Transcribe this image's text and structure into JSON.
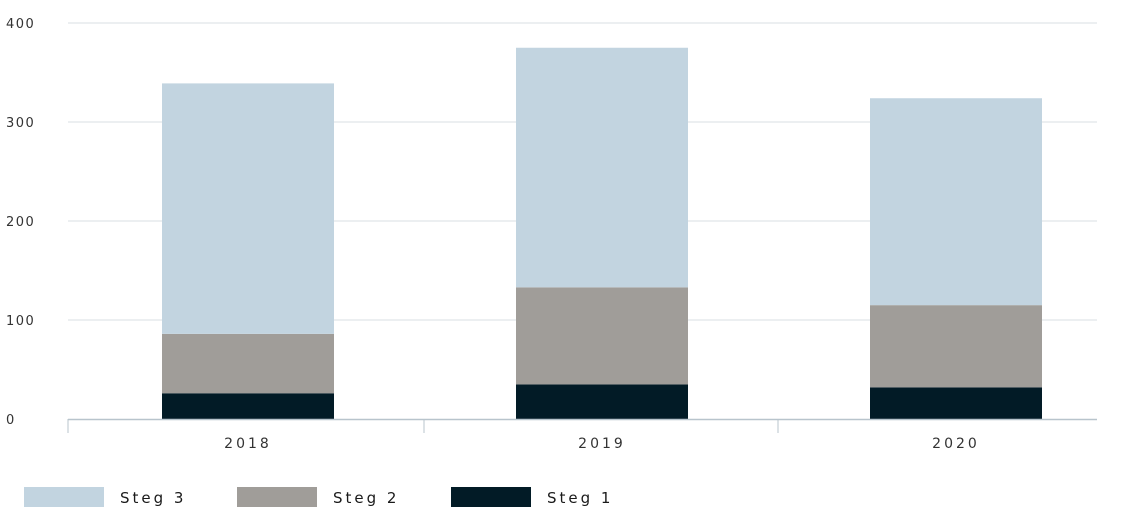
{
  "chart_data": {
    "type": "bar",
    "stacked": true,
    "categories": [
      "2018",
      "2019",
      "2020"
    ],
    "series": [
      {
        "name": "Steg 1",
        "values": [
          26,
          35,
          32
        ],
        "color": "#021b26"
      },
      {
        "name": "Steg 2",
        "values": [
          60,
          98,
          83
        ],
        "color": "#a09d99"
      },
      {
        "name": "Steg 3",
        "values": [
          253,
          242,
          209
        ],
        "color": "#c2d4e0"
      }
    ],
    "legend_order": [
      "Steg 3",
      "Steg 2",
      "Steg 1"
    ],
    "ylim": [
      0,
      400
    ],
    "yticks": [
      0,
      100,
      200,
      300,
      400
    ],
    "grid": true,
    "legend_position": "bottom-left",
    "title": "",
    "xlabel": "",
    "ylabel": ""
  }
}
